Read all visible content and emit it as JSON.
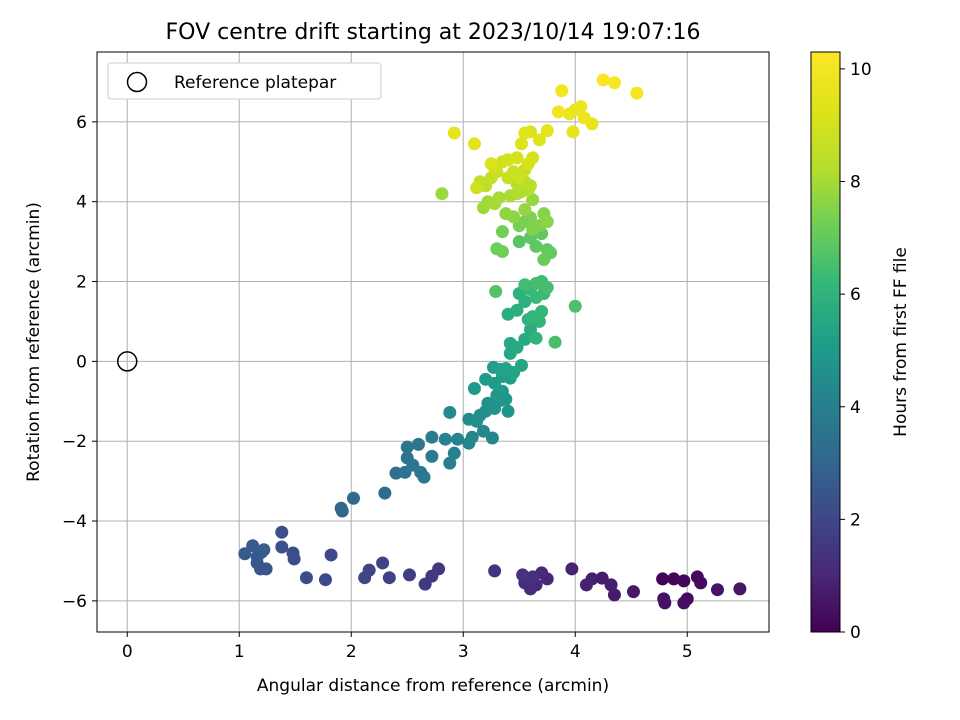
{
  "chart_data": {
    "type": "scatter",
    "title": "FOV centre drift starting at 2023/10/14 19:07:16",
    "xlabel": "Angular distance from reference (arcmin)",
    "ylabel": "Rotation from reference (arcmin)",
    "xlim": [
      -0.27,
      5.73
    ],
    "ylim": [
      -6.78,
      7.75
    ],
    "xticks": [
      0,
      1,
      2,
      3,
      4,
      5
    ],
    "yticks": [
      -6,
      -4,
      -2,
      0,
      2,
      4,
      6
    ],
    "grid": true,
    "legend": {
      "position": "top-left",
      "entries": [
        "Reference platepar"
      ]
    },
    "reference_point": {
      "x": 0,
      "y": 0,
      "label": "Reference platepar"
    },
    "colorbar": {
      "label": "Hours from first FF file",
      "colormap": "viridis",
      "range": [
        0,
        10.3
      ],
      "ticks": [
        0,
        2,
        4,
        6,
        8,
        10
      ]
    },
    "points": [
      {
        "x": 4.78,
        "y": -5.45,
        "t": 0.05
      },
      {
        "x": 4.88,
        "y": -5.45,
        "t": 0.1
      },
      {
        "x": 4.97,
        "y": -5.5,
        "t": 0.15
      },
      {
        "x": 5.09,
        "y": -5.4,
        "t": 0.2
      },
      {
        "x": 5.12,
        "y": -5.55,
        "t": 0.25
      },
      {
        "x": 5.0,
        "y": -5.95,
        "t": 0.3
      },
      {
        "x": 4.97,
        "y": -6.05,
        "t": 0.35
      },
      {
        "x": 4.79,
        "y": -5.95,
        "t": 0.4
      },
      {
        "x": 4.8,
        "y": -6.05,
        "t": 0.45
      },
      {
        "x": 5.27,
        "y": -5.72,
        "t": 0.5
      },
      {
        "x": 5.47,
        "y": -5.7,
        "t": 0.55
      },
      {
        "x": 4.52,
        "y": -5.77,
        "t": 0.6
      },
      {
        "x": 4.35,
        "y": -5.85,
        "t": 0.65
      },
      {
        "x": 4.32,
        "y": -5.6,
        "t": 0.7
      },
      {
        "x": 4.24,
        "y": -5.43,
        "t": 0.75
      },
      {
        "x": 4.15,
        "y": -5.45,
        "t": 0.8
      },
      {
        "x": 4.1,
        "y": -5.6,
        "t": 0.85
      },
      {
        "x": 3.97,
        "y": -5.2,
        "t": 0.9
      },
      {
        "x": 3.75,
        "y": -5.45,
        "t": 1.0
      },
      {
        "x": 3.7,
        "y": -5.3,
        "t": 1.05
      },
      {
        "x": 3.65,
        "y": -5.6,
        "t": 1.1
      },
      {
        "x": 3.6,
        "y": -5.7,
        "t": 1.15
      },
      {
        "x": 3.55,
        "y": -5.55,
        "t": 1.2
      },
      {
        "x": 3.6,
        "y": -5.45,
        "t": 1.25
      },
      {
        "x": 3.53,
        "y": -5.35,
        "t": 1.3
      },
      {
        "x": 3.62,
        "y": -5.4,
        "t": 1.35
      },
      {
        "x": 3.28,
        "y": -5.25,
        "t": 1.4
      },
      {
        "x": 2.78,
        "y": -5.2,
        "t": 1.5
      },
      {
        "x": 2.72,
        "y": -5.38,
        "t": 1.55
      },
      {
        "x": 2.66,
        "y": -5.58,
        "t": 1.6
      },
      {
        "x": 2.52,
        "y": -5.35,
        "t": 1.7
      },
      {
        "x": 2.34,
        "y": -5.42,
        "t": 1.8
      },
      {
        "x": 2.28,
        "y": -5.05,
        "t": 1.85
      },
      {
        "x": 2.16,
        "y": -5.23,
        "t": 1.9
      },
      {
        "x": 2.12,
        "y": -5.42,
        "t": 1.95
      },
      {
        "x": 1.82,
        "y": -4.85,
        "t": 2.05
      },
      {
        "x": 1.77,
        "y": -5.47,
        "t": 2.1
      },
      {
        "x": 1.6,
        "y": -5.42,
        "t": 2.15
      },
      {
        "x": 1.49,
        "y": -4.95,
        "t": 2.2
      },
      {
        "x": 1.48,
        "y": -4.8,
        "t": 2.25
      },
      {
        "x": 1.38,
        "y": -4.28,
        "t": 2.3
      },
      {
        "x": 1.38,
        "y": -4.65,
        "t": 2.35
      },
      {
        "x": 1.24,
        "y": -5.2,
        "t": 2.4
      },
      {
        "x": 1.19,
        "y": -5.2,
        "t": 2.45
      },
      {
        "x": 1.16,
        "y": -5.05,
        "t": 2.5
      },
      {
        "x": 1.2,
        "y": -4.78,
        "t": 2.55
      },
      {
        "x": 1.16,
        "y": -4.9,
        "t": 2.6
      },
      {
        "x": 1.12,
        "y": -4.62,
        "t": 2.65
      },
      {
        "x": 1.05,
        "y": -4.82,
        "t": 2.7
      },
      {
        "x": 1.22,
        "y": -4.72,
        "t": 2.75
      },
      {
        "x": 1.92,
        "y": -3.75,
        "t": 3.0
      },
      {
        "x": 1.91,
        "y": -3.68,
        "t": 3.1
      },
      {
        "x": 2.02,
        "y": -3.43,
        "t": 3.2
      },
      {
        "x": 2.3,
        "y": -3.3,
        "t": 3.3
      },
      {
        "x": 2.4,
        "y": -2.8,
        "t": 3.4
      },
      {
        "x": 2.48,
        "y": -2.78,
        "t": 3.5
      },
      {
        "x": 2.5,
        "y": -2.42,
        "t": 3.55
      },
      {
        "x": 2.55,
        "y": -2.6,
        "t": 3.6
      },
      {
        "x": 2.5,
        "y": -2.15,
        "t": 3.65
      },
      {
        "x": 2.6,
        "y": -2.08,
        "t": 3.7
      },
      {
        "x": 2.62,
        "y": -2.78,
        "t": 3.75
      },
      {
        "x": 2.65,
        "y": -2.9,
        "t": 3.8
      },
      {
        "x": 2.72,
        "y": -2.38,
        "t": 3.85
      },
      {
        "x": 2.72,
        "y": -1.9,
        "t": 3.9
      },
      {
        "x": 2.88,
        "y": -2.55,
        "t": 4.0
      },
      {
        "x": 2.92,
        "y": -2.3,
        "t": 4.05
      },
      {
        "x": 2.84,
        "y": -1.95,
        "t": 4.1
      },
      {
        "x": 2.95,
        "y": -1.95,
        "t": 4.15
      },
      {
        "x": 3.05,
        "y": -2.05,
        "t": 4.2
      },
      {
        "x": 3.08,
        "y": -1.9,
        "t": 4.25
      },
      {
        "x": 3.26,
        "y": -1.92,
        "t": 4.3
      },
      {
        "x": 3.18,
        "y": -1.75,
        "t": 4.35
      },
      {
        "x": 2.88,
        "y": -1.28,
        "t": 4.4
      },
      {
        "x": 3.05,
        "y": -1.45,
        "t": 4.45
      },
      {
        "x": 3.12,
        "y": -1.5,
        "t": 4.5
      },
      {
        "x": 3.15,
        "y": -1.35,
        "t": 4.55
      },
      {
        "x": 3.2,
        "y": -1.25,
        "t": 4.6
      },
      {
        "x": 3.22,
        "y": -1.05,
        "t": 4.65
      },
      {
        "x": 3.28,
        "y": -1.18,
        "t": 4.7
      },
      {
        "x": 3.33,
        "y": -0.98,
        "t": 4.75
      },
      {
        "x": 3.4,
        "y": -1.25,
        "t": 4.8
      },
      {
        "x": 3.38,
        "y": -0.95,
        "t": 4.85
      },
      {
        "x": 3.3,
        "y": -0.85,
        "t": 4.9
      },
      {
        "x": 3.35,
        "y": -0.75,
        "t": 4.95
      },
      {
        "x": 3.1,
        "y": -0.68,
        "t": 5.0
      },
      {
        "x": 3.2,
        "y": -0.45,
        "t": 5.05
      },
      {
        "x": 3.28,
        "y": -0.55,
        "t": 5.1
      },
      {
        "x": 3.35,
        "y": -0.38,
        "t": 5.15
      },
      {
        "x": 3.42,
        "y": -0.42,
        "t": 5.2
      },
      {
        "x": 3.27,
        "y": -0.15,
        "t": 5.25
      },
      {
        "x": 3.33,
        "y": -0.2,
        "t": 5.3
      },
      {
        "x": 3.38,
        "y": -0.18,
        "t": 5.35
      },
      {
        "x": 3.45,
        "y": -0.28,
        "t": 5.4
      },
      {
        "x": 3.52,
        "y": -0.1,
        "t": 5.45
      },
      {
        "x": 3.42,
        "y": 0.2,
        "t": 5.5
      },
      {
        "x": 3.42,
        "y": 0.45,
        "t": 5.55
      },
      {
        "x": 3.48,
        "y": 0.35,
        "t": 5.6
      },
      {
        "x": 3.55,
        "y": 0.55,
        "t": 5.65
      },
      {
        "x": 3.6,
        "y": 0.8,
        "t": 5.7
      },
      {
        "x": 3.4,
        "y": 1.18,
        "t": 5.75
      },
      {
        "x": 3.48,
        "y": 1.28,
        "t": 5.8
      },
      {
        "x": 3.55,
        "y": 1.5,
        "t": 5.85
      },
      {
        "x": 3.5,
        "y": 1.7,
        "t": 5.9
      },
      {
        "x": 3.58,
        "y": 1.05,
        "t": 5.95
      },
      {
        "x": 3.65,
        "y": 0.58,
        "t": 6.0
      },
      {
        "x": 3.62,
        "y": 1.12,
        "t": 6.05
      },
      {
        "x": 3.68,
        "y": 1.0,
        "t": 6.1
      },
      {
        "x": 3.7,
        "y": 1.25,
        "t": 6.15
      },
      {
        "x": 3.6,
        "y": 1.8,
        "t": 6.2
      },
      {
        "x": 3.65,
        "y": 1.6,
        "t": 6.25
      },
      {
        "x": 3.72,
        "y": 1.7,
        "t": 6.3
      },
      {
        "x": 3.7,
        "y": 2.0,
        "t": 6.35
      },
      {
        "x": 3.55,
        "y": 1.92,
        "t": 6.4
      },
      {
        "x": 3.65,
        "y": 1.95,
        "t": 6.45
      },
      {
        "x": 3.75,
        "y": 1.85,
        "t": 6.5
      },
      {
        "x": 3.82,
        "y": 0.48,
        "t": 6.55
      },
      {
        "x": 4.0,
        "y": 1.38,
        "t": 6.6
      },
      {
        "x": 3.29,
        "y": 1.75,
        "t": 6.7
      },
      {
        "x": 3.5,
        "y": 3.0,
        "t": 6.8
      },
      {
        "x": 3.6,
        "y": 3.1,
        "t": 6.85
      },
      {
        "x": 3.65,
        "y": 2.88,
        "t": 6.9
      },
      {
        "x": 3.7,
        "y": 3.2,
        "t": 6.95
      },
      {
        "x": 3.75,
        "y": 2.8,
        "t": 7.0
      },
      {
        "x": 3.78,
        "y": 2.72,
        "t": 7.05
      },
      {
        "x": 3.72,
        "y": 2.55,
        "t": 7.1
      },
      {
        "x": 3.3,
        "y": 2.82,
        "t": 7.15
      },
      {
        "x": 3.35,
        "y": 2.75,
        "t": 7.2
      },
      {
        "x": 3.35,
        "y": 3.25,
        "t": 7.25
      },
      {
        "x": 3.5,
        "y": 3.4,
        "t": 7.3
      },
      {
        "x": 3.55,
        "y": 3.5,
        "t": 7.35
      },
      {
        "x": 3.6,
        "y": 3.6,
        "t": 7.4
      },
      {
        "x": 3.62,
        "y": 3.3,
        "t": 7.45
      },
      {
        "x": 3.68,
        "y": 3.4,
        "t": 7.5
      },
      {
        "x": 3.72,
        "y": 3.7,
        "t": 7.55
      },
      {
        "x": 3.75,
        "y": 3.5,
        "t": 7.6
      },
      {
        "x": 3.45,
        "y": 3.62,
        "t": 7.65
      },
      {
        "x": 3.38,
        "y": 3.7,
        "t": 7.7
      },
      {
        "x": 3.55,
        "y": 3.8,
        "t": 7.75
      },
      {
        "x": 3.62,
        "y": 4.05,
        "t": 7.8
      },
      {
        "x": 2.81,
        "y": 4.2,
        "t": 7.85
      },
      {
        "x": 3.18,
        "y": 3.85,
        "t": 7.9
      },
      {
        "x": 3.22,
        "y": 4.0,
        "t": 7.95
      },
      {
        "x": 3.28,
        "y": 3.95,
        "t": 8.0
      },
      {
        "x": 3.32,
        "y": 4.1,
        "t": 8.05
      },
      {
        "x": 3.42,
        "y": 4.15,
        "t": 8.1
      },
      {
        "x": 3.48,
        "y": 4.2,
        "t": 8.15
      },
      {
        "x": 3.52,
        "y": 4.25,
        "t": 8.2
      },
      {
        "x": 3.58,
        "y": 4.3,
        "t": 8.25
      },
      {
        "x": 3.48,
        "y": 4.45,
        "t": 8.3
      },
      {
        "x": 3.55,
        "y": 4.5,
        "t": 8.35
      },
      {
        "x": 3.6,
        "y": 4.4,
        "t": 8.4
      },
      {
        "x": 3.2,
        "y": 4.4,
        "t": 8.45
      },
      {
        "x": 3.15,
        "y": 4.5,
        "t": 8.5
      },
      {
        "x": 3.25,
        "y": 4.6,
        "t": 8.55
      },
      {
        "x": 3.3,
        "y": 4.75,
        "t": 8.6
      },
      {
        "x": 3.4,
        "y": 4.6,
        "t": 8.65
      },
      {
        "x": 3.45,
        "y": 4.75,
        "t": 8.7
      },
      {
        "x": 3.55,
        "y": 4.8,
        "t": 8.75
      },
      {
        "x": 3.5,
        "y": 4.6,
        "t": 8.8
      },
      {
        "x": 3.12,
        "y": 4.35,
        "t": 8.85
      },
      {
        "x": 3.28,
        "y": 4.85,
        "t": 8.9
      },
      {
        "x": 3.35,
        "y": 5.0,
        "t": 8.95
      },
      {
        "x": 3.4,
        "y": 5.05,
        "t": 9.0
      },
      {
        "x": 3.48,
        "y": 5.1,
        "t": 9.05
      },
      {
        "x": 3.58,
        "y": 4.95,
        "t": 9.1
      },
      {
        "x": 3.62,
        "y": 5.1,
        "t": 9.15
      },
      {
        "x": 3.25,
        "y": 4.95,
        "t": 9.2
      },
      {
        "x": 3.52,
        "y": 5.45,
        "t": 9.25
      },
      {
        "x": 3.6,
        "y": 5.75,
        "t": 9.3
      },
      {
        "x": 3.68,
        "y": 5.55,
        "t": 9.35
      },
      {
        "x": 3.55,
        "y": 5.72,
        "t": 9.4
      },
      {
        "x": 3.75,
        "y": 5.78,
        "t": 9.45
      },
      {
        "x": 3.1,
        "y": 5.45,
        "t": 9.5
      },
      {
        "x": 2.92,
        "y": 5.72,
        "t": 9.55
      },
      {
        "x": 3.98,
        "y": 5.75,
        "t": 9.6
      },
      {
        "x": 4.15,
        "y": 5.95,
        "t": 9.65
      },
      {
        "x": 3.95,
        "y": 6.2,
        "t": 9.7
      },
      {
        "x": 4.0,
        "y": 6.3,
        "t": 9.75
      },
      {
        "x": 4.05,
        "y": 6.38,
        "t": 9.8
      },
      {
        "x": 4.08,
        "y": 6.1,
        "t": 9.85
      },
      {
        "x": 3.85,
        "y": 6.25,
        "t": 9.9
      },
      {
        "x": 3.88,
        "y": 6.78,
        "t": 9.95
      },
      {
        "x": 4.55,
        "y": 6.72,
        "t": 10.0
      },
      {
        "x": 4.35,
        "y": 6.98,
        "t": 10.1
      },
      {
        "x": 4.25,
        "y": 7.05,
        "t": 10.2
      }
    ]
  }
}
